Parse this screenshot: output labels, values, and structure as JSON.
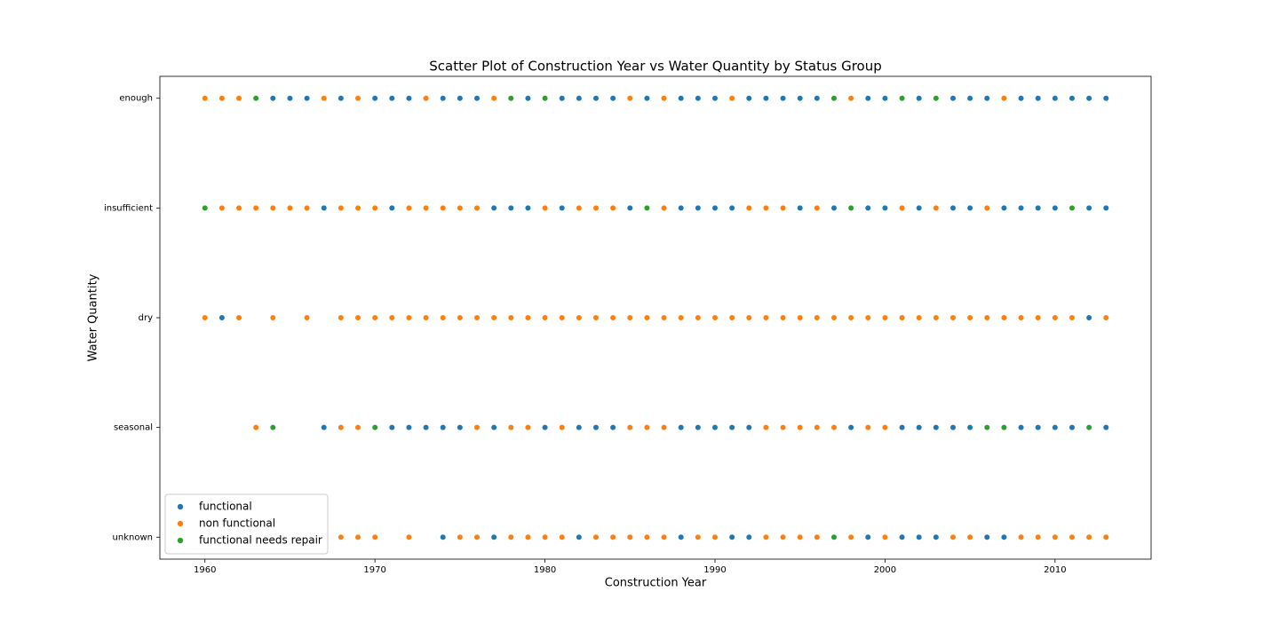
{
  "chart_data": {
    "type": "scatter",
    "title": "Scatter Plot of Construction Year vs Water Quantity by Status Group",
    "x_label": "Construction Year",
    "y_label": "Water Quantity",
    "y_categories": [
      "enough",
      "insufficient",
      "dry",
      "seasonal",
      "unknown"
    ],
    "xlim": [
      1957.35,
      2015.65
    ],
    "xticks": [
      1960,
      1970,
      1980,
      1990,
      2000,
      2010
    ],
    "legend": "lower left",
    "series": [
      {
        "name": "functional",
        "color": "#1f77b4",
        "x": [
          1964,
          1965,
          1966,
          1968,
          1970,
          1971,
          1972,
          1974,
          1975,
          1976,
          1979,
          1981,
          1982,
          1983,
          1984,
          1986,
          1988,
          1989,
          1990,
          1992,
          1993,
          1994,
          1995,
          1996,
          1999,
          2000,
          2002,
          2004,
          2005,
          2006,
          2008,
          2009,
          2010,
          2011,
          2012,
          2013,
          1967,
          1971,
          1977,
          1978,
          1979,
          1981,
          1985,
          1988,
          1989,
          1990,
          1991,
          1995,
          1997,
          1999,
          2000,
          2002,
          2004,
          2005,
          2007,
          2008,
          2009,
          2010,
          2012,
          2013,
          1961,
          2012,
          1967,
          1971,
          1972,
          1973,
          1974,
          1975,
          1977,
          1980,
          1982,
          1983,
          1984,
          1988,
          1989,
          1990,
          1991,
          1992,
          1998,
          2001,
          2002,
          2003,
          2004,
          2005,
          2008,
          2009,
          2010,
          2011,
          2013,
          1974,
          1977,
          1982,
          1988,
          1991,
          1992,
          1999,
          2001,
          2002,
          2003,
          2006,
          2007
        ],
        "values": [
          "enough",
          "enough",
          "enough",
          "enough",
          "enough",
          "enough",
          "enough",
          "enough",
          "enough",
          "enough",
          "enough",
          "enough",
          "enough",
          "enough",
          "enough",
          "enough",
          "enough",
          "enough",
          "enough",
          "enough",
          "enough",
          "enough",
          "enough",
          "enough",
          "enough",
          "enough",
          "enough",
          "enough",
          "enough",
          "enough",
          "enough",
          "enough",
          "enough",
          "enough",
          "enough",
          "enough",
          "insufficient",
          "insufficient",
          "insufficient",
          "insufficient",
          "insufficient",
          "insufficient",
          "insufficient",
          "insufficient",
          "insufficient",
          "insufficient",
          "insufficient",
          "insufficient",
          "insufficient",
          "insufficient",
          "insufficient",
          "insufficient",
          "insufficient",
          "insufficient",
          "insufficient",
          "insufficient",
          "insufficient",
          "insufficient",
          "insufficient",
          "insufficient",
          "dry",
          "dry",
          "seasonal",
          "seasonal",
          "seasonal",
          "seasonal",
          "seasonal",
          "seasonal",
          "seasonal",
          "seasonal",
          "seasonal",
          "seasonal",
          "seasonal",
          "seasonal",
          "seasonal",
          "seasonal",
          "seasonal",
          "seasonal",
          "seasonal",
          "seasonal",
          "seasonal",
          "seasonal",
          "seasonal",
          "seasonal",
          "seasonal",
          "seasonal",
          "seasonal",
          "seasonal",
          "seasonal",
          "unknown",
          "unknown",
          "unknown",
          "unknown",
          "unknown",
          "unknown",
          "unknown",
          "unknown",
          "unknown",
          "unknown",
          "unknown",
          "unknown"
        ]
      },
      {
        "name": "non functional",
        "color": "#ff7f0e",
        "x": [
          1960,
          1961,
          1962,
          1967,
          1969,
          1973,
          1977,
          1985,
          1987,
          1991,
          1998,
          2007,
          1961,
          1962,
          1963,
          1964,
          1965,
          1966,
          1968,
          1969,
          1970,
          1972,
          1973,
          1974,
          1975,
          1976,
          1980,
          1982,
          1983,
          1984,
          1987,
          1992,
          1993,
          1994,
          1996,
          2001,
          2003,
          2006,
          1960,
          1962,
          1964,
          1966,
          1968,
          1969,
          1970,
          1971,
          1972,
          1973,
          1974,
          1975,
          1976,
          1977,
          1978,
          1979,
          1980,
          1981,
          1982,
          1983,
          1984,
          1985,
          1986,
          1987,
          1988,
          1989,
          1990,
          1991,
          1992,
          1993,
          1994,
          1995,
          1996,
          1997,
          1998,
          1999,
          2000,
          2001,
          2002,
          2003,
          2004,
          2005,
          2006,
          2007,
          2008,
          2009,
          2010,
          2011,
          2013,
          1963,
          1968,
          1969,
          1976,
          1978,
          1979,
          1981,
          1985,
          1986,
          1987,
          1993,
          1994,
          1995,
          1996,
          1997,
          1999,
          2000,
          1968,
          1969,
          1970,
          1972,
          1975,
          1976,
          1978,
          1979,
          1980,
          1981,
          1983,
          1984,
          1985,
          1986,
          1987,
          1989,
          1990,
          1993,
          1994,
          1995,
          1996,
          1998,
          2000,
          2004,
          2005,
          2008,
          2009,
          2010,
          2011,
          2012,
          2013
        ],
        "values": [
          "enough",
          "enough",
          "enough",
          "enough",
          "enough",
          "enough",
          "enough",
          "enough",
          "enough",
          "enough",
          "enough",
          "enough",
          "insufficient",
          "insufficient",
          "insufficient",
          "insufficient",
          "insufficient",
          "insufficient",
          "insufficient",
          "insufficient",
          "insufficient",
          "insufficient",
          "insufficient",
          "insufficient",
          "insufficient",
          "insufficient",
          "insufficient",
          "insufficient",
          "insufficient",
          "insufficient",
          "insufficient",
          "insufficient",
          "insufficient",
          "insufficient",
          "insufficient",
          "insufficient",
          "insufficient",
          "insufficient",
          "dry",
          "dry",
          "dry",
          "dry",
          "dry",
          "dry",
          "dry",
          "dry",
          "dry",
          "dry",
          "dry",
          "dry",
          "dry",
          "dry",
          "dry",
          "dry",
          "dry",
          "dry",
          "dry",
          "dry",
          "dry",
          "dry",
          "dry",
          "dry",
          "dry",
          "dry",
          "dry",
          "dry",
          "dry",
          "dry",
          "dry",
          "dry",
          "dry",
          "dry",
          "dry",
          "dry",
          "dry",
          "dry",
          "dry",
          "dry",
          "dry",
          "dry",
          "dry",
          "dry",
          "dry",
          "dry",
          "dry",
          "dry",
          "dry",
          "seasonal",
          "seasonal",
          "seasonal",
          "seasonal",
          "seasonal",
          "seasonal",
          "seasonal",
          "seasonal",
          "seasonal",
          "seasonal",
          "seasonal",
          "seasonal",
          "seasonal",
          "seasonal",
          "seasonal",
          "seasonal",
          "seasonal",
          "unknown",
          "unknown",
          "unknown",
          "unknown",
          "unknown",
          "unknown",
          "unknown",
          "unknown",
          "unknown",
          "unknown",
          "unknown",
          "unknown",
          "unknown",
          "unknown",
          "unknown",
          "unknown",
          "unknown",
          "unknown",
          "unknown",
          "unknown",
          "unknown",
          "unknown",
          "unknown",
          "unknown",
          "unknown",
          "unknown",
          "unknown",
          "unknown",
          "unknown",
          "unknown",
          "unknown"
        ]
      },
      {
        "name": "functional needs repair",
        "color": "#2ca02c",
        "x": [
          1963,
          1978,
          1980,
          1997,
          2001,
          2003,
          1960,
          1986,
          1998,
          2011,
          1964,
          1970,
          2006,
          2007,
          2012,
          1997
        ],
        "values": [
          "enough",
          "enough",
          "enough",
          "enough",
          "enough",
          "enough",
          "insufficient",
          "insufficient",
          "insufficient",
          "insufficient",
          "seasonal",
          "seasonal",
          "seasonal",
          "seasonal",
          "seasonal",
          "unknown"
        ]
      }
    ]
  }
}
